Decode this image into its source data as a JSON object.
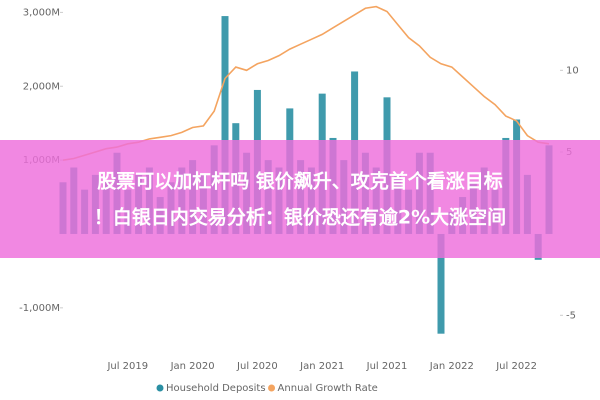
{
  "chart_data": {
    "type": "combo",
    "categories": [
      null,
      null,
      null,
      null,
      null,
      null,
      "Jul 2019",
      null,
      null,
      null,
      null,
      null,
      "Jan 2020",
      null,
      null,
      null,
      null,
      null,
      "Jul 2020",
      null,
      null,
      null,
      null,
      null,
      "Jan 2021",
      null,
      null,
      null,
      null,
      null,
      "Jul 2021",
      null,
      null,
      null,
      null,
      null,
      "Jan 2022",
      null,
      null,
      null,
      null,
      null,
      "Jul 2022",
      null,
      null,
      null
    ],
    "series": [
      {
        "name": "Household Deposits",
        "type": "bar",
        "color": "#2a8fa3",
        "values": [
          700,
          900,
          600,
          800,
          700,
          1100,
          600,
          800,
          900,
          500,
          700,
          900,
          1000,
          800,
          1200,
          2950,
          1500,
          1100,
          1950,
          1000,
          900,
          1700,
          1000,
          900,
          1900,
          1300,
          1000,
          2200,
          1100,
          900,
          1850,
          800,
          600,
          1100,
          1100,
          -1350,
          300,
          500,
          700,
          900,
          600,
          1300,
          1550,
          800,
          -350,
          1200
        ]
      },
      {
        "name": "Annual Growth Rate",
        "type": "line",
        "axis": "y2",
        "color": "#f4a460",
        "values": [
          4.5,
          4.6,
          4.8,
          5.0,
          5.2,
          5.3,
          5.5,
          5.6,
          5.8,
          5.9,
          6.0,
          6.2,
          6.5,
          6.6,
          7.5,
          9.5,
          10.2,
          10.0,
          10.4,
          10.6,
          10.9,
          11.3,
          11.6,
          11.9,
          12.2,
          12.6,
          13.0,
          13.4,
          13.8,
          13.9,
          13.6,
          12.8,
          12.0,
          11.5,
          10.8,
          10.4,
          10.2,
          9.6,
          9.0,
          8.4,
          7.9,
          7.2,
          6.9,
          6.0,
          5.6,
          5.5
        ]
      }
    ],
    "ylim": [
      -1300,
      3100
    ],
    "yticks": [
      {
        "value": -1000,
        "label": "-1,000M"
      },
      {
        "value": 1000,
        "label": "1,000M"
      },
      {
        "value": 2000,
        "label": "2,000M"
      },
      {
        "value": 3000,
        "label": "3,000M"
      }
    ],
    "y2lim": [
      -5.9,
      14
    ],
    "y2ticks": [
      -5,
      5,
      10
    ]
  },
  "banner": {
    "lines": [
      "股票可以加杠杆吗 银价飙升、攻克首个看涨目标",
      "！白银日内交易分析：银价恐还有逾2%大涨空间"
    ]
  }
}
